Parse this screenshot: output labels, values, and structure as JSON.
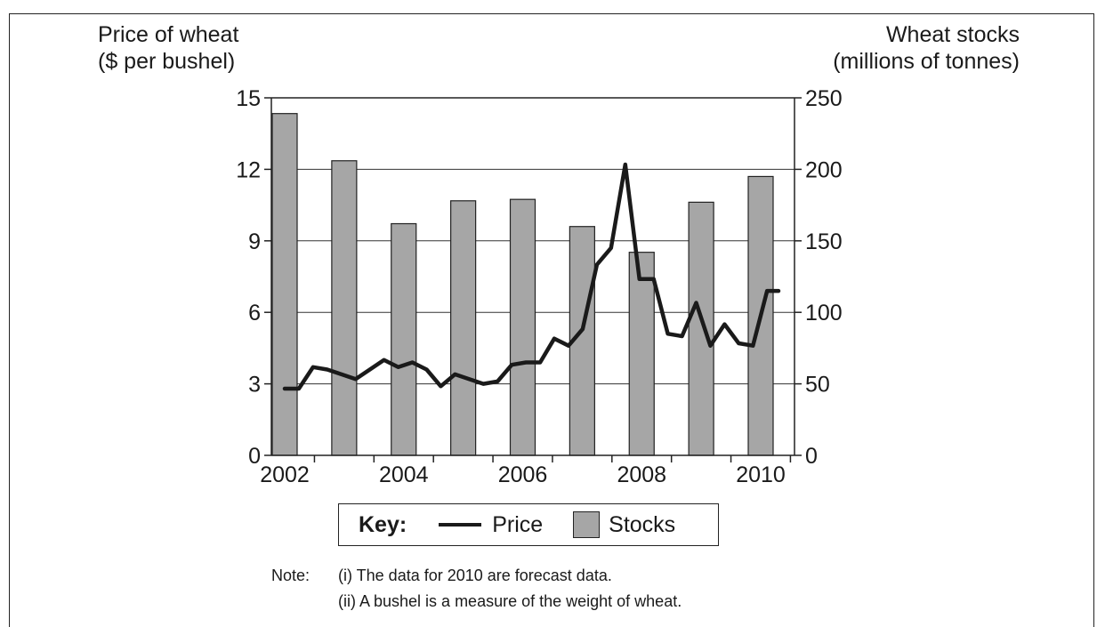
{
  "chart_data": {
    "type": "bar+line",
    "title": "",
    "left_axis": {
      "label_line1": "Price of wheat",
      "label_line2": "($ per bushel)",
      "ylim": [
        0,
        15
      ],
      "ticks": [
        "0",
        "3",
        "6",
        "9",
        "12",
        "15"
      ]
    },
    "right_axis": {
      "label_line1": "Wheat stocks",
      "label_line2": "(millions of tonnes)",
      "ylim": [
        0,
        250
      ],
      "ticks": [
        "0",
        "50",
        "100",
        "150",
        "200",
        "250"
      ]
    },
    "xlim": [
      2002,
      2010.7
    ],
    "x_tick_labels": [
      "2002",
      "2004",
      "2006",
      "2008",
      "2010"
    ],
    "grid": true,
    "series": [
      {
        "name": "Stocks",
        "type": "bar",
        "axis": "right",
        "color": "#a6a6a6",
        "categories": [
          "2002",
          "2003",
          "2004",
          "2005",
          "2006",
          "2007",
          "2008",
          "2009",
          "2010"
        ],
        "values": [
          239,
          206,
          162,
          178,
          179,
          160,
          142,
          177,
          195
        ]
      },
      {
        "name": "Price",
        "type": "line",
        "axis": "left",
        "color": "#1a1a1a",
        "x": [
          2002.0,
          2002.25,
          2002.5,
          2002.75,
          2003.0,
          2003.25,
          2003.5,
          2003.75,
          2004.0,
          2004.25,
          2004.5,
          2004.75,
          2005.0,
          2005.25,
          2005.5,
          2005.75,
          2006.0,
          2006.25,
          2006.5,
          2006.75,
          2007.0,
          2007.25,
          2007.5,
          2007.75,
          2008.0,
          2008.25,
          2008.5,
          2008.75,
          2009.0,
          2009.25,
          2009.5,
          2009.75,
          2010.0,
          2010.25,
          2010.5,
          2010.7
        ],
        "values": [
          2.8,
          2.8,
          3.7,
          3.6,
          3.4,
          3.2,
          3.6,
          4.0,
          3.7,
          3.9,
          3.6,
          2.9,
          3.4,
          3.2,
          3.0,
          3.1,
          3.8,
          3.9,
          3.9,
          4.9,
          4.6,
          5.3,
          8.0,
          8.7,
          12.2,
          7.4,
          7.4,
          5.1,
          5.0,
          6.4,
          4.6,
          5.5,
          4.7,
          4.6,
          6.9,
          6.9
        ]
      }
    ],
    "legend": {
      "title": "Key:",
      "placement": "bottom-center",
      "entries": [
        "Price",
        "Stocks"
      ]
    }
  },
  "notes": {
    "label": "Note:",
    "line1": "(i)  The data for 2010 are forecast data.",
    "line2": "(ii)  A bushel is a measure of the weight of wheat."
  }
}
